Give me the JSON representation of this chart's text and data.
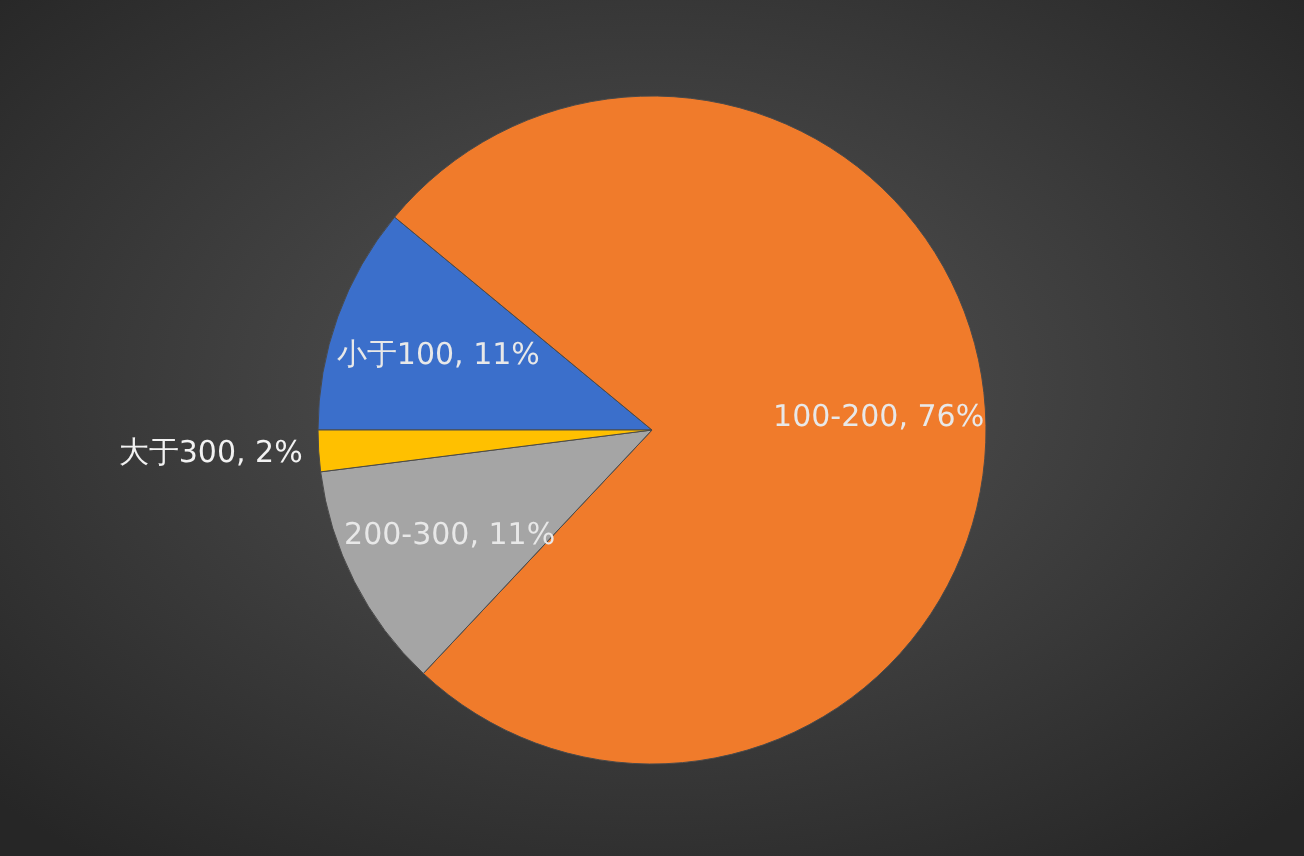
{
  "chart_data": {
    "type": "pie",
    "categories": [
      "小于100",
      "100-200",
      "200-300",
      "大于300"
    ],
    "values": [
      11,
      76,
      11,
      2
    ],
    "value_labels": [
      "11%",
      "76%",
      "11%",
      "2%"
    ],
    "colors": [
      "#3b6fcb",
      "#f07b2b",
      "#a5a5a5",
      "#ffc000"
    ]
  }
}
